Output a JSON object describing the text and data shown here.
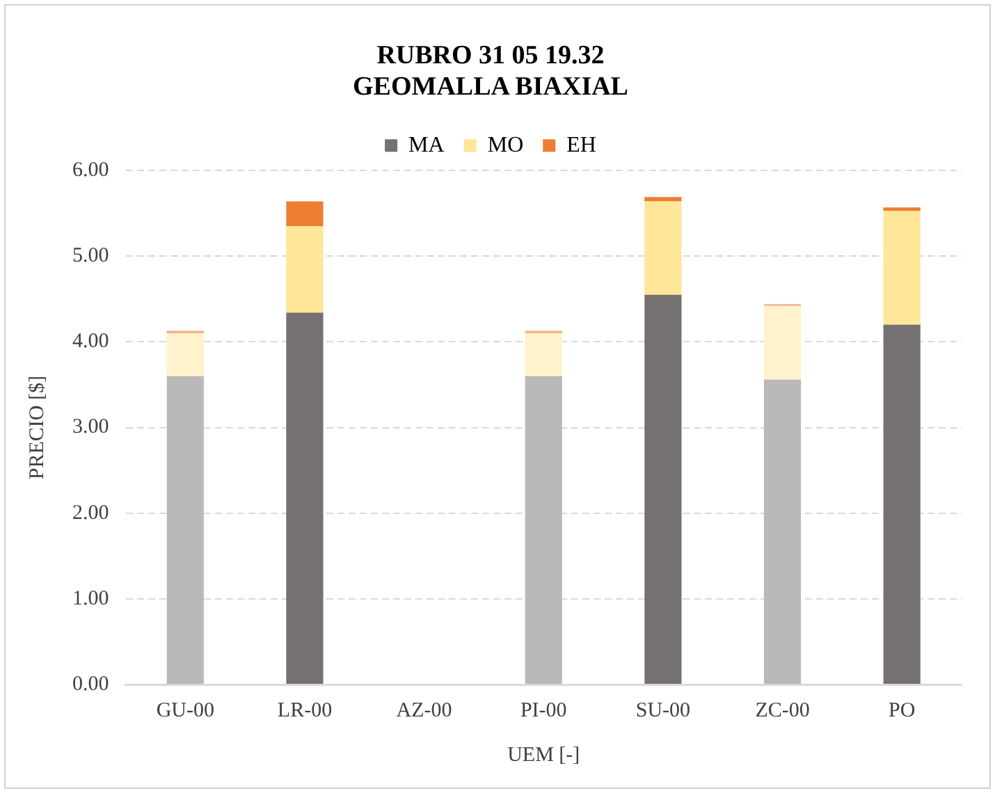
{
  "chart_data": {
    "type": "bar",
    "title": [
      "RUBRO 31 05 19.32",
      "GEOMALLA BIAXIAL"
    ],
    "xlabel": "UEM [-]",
    "ylabel": "PRECIO [$]",
    "categories": [
      "GU-00",
      "LR-00",
      "AZ-00",
      "PI-00",
      "SU-00",
      "ZC-00",
      "PO"
    ],
    "stacked": true,
    "legend": "top",
    "grid": "y",
    "ylim": [
      0,
      6
    ],
    "yticks": [
      {
        "value": 0,
        "label": "0.00"
      },
      {
        "value": 1,
        "label": "1.00"
      },
      {
        "value": 2,
        "label": "2.00"
      },
      {
        "value": 3,
        "label": "3.00"
      },
      {
        "value": 4,
        "label": "4.00"
      },
      {
        "value": 5,
        "label": "5.00"
      },
      {
        "value": 6,
        "label": "6.00"
      }
    ],
    "series": [
      {
        "name": "MA",
        "color": "#767171",
        "colors": [
          "#bab8b8",
          "#767171",
          "#767171",
          "#bab8b8",
          "#767171",
          "#bab8b8",
          "#767171"
        ],
        "values": [
          3.6,
          4.34,
          null,
          3.6,
          4.55,
          3.56,
          4.2
        ]
      },
      {
        "name": "MO",
        "color": "#ffe699",
        "colors": [
          "#fff2cc",
          "#ffe699",
          "#ffe699",
          "#fff2cc",
          "#ffe699",
          "#fff2cc",
          "#ffe699"
        ],
        "values": [
          0.5,
          1.01,
          null,
          0.5,
          1.09,
          0.86,
          1.33
        ]
      },
      {
        "name": "EH",
        "color": "#ed7d31",
        "colors": [
          "#f4b183",
          "#ed7d31",
          "#ed7d31",
          "#f4b183",
          "#ed7d31",
          "#f4b183",
          "#ed7d31"
        ],
        "values": [
          0.03,
          0.29,
          null,
          0.03,
          0.05,
          0.02,
          0.04
        ]
      }
    ]
  }
}
